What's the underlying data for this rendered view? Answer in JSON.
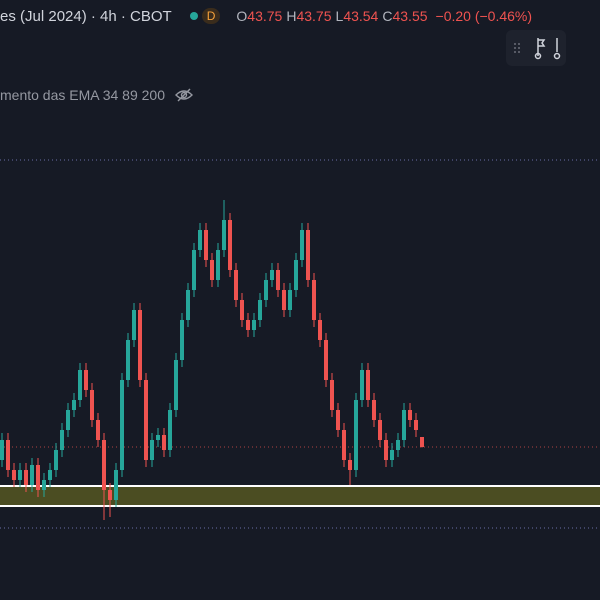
{
  "header": {
    "symbol": "es (Jul 2024) · 4h · CBOT",
    "badge": "D",
    "ohlc": [
      {
        "label": "O",
        "value": "43.75"
      },
      {
        "label": "H",
        "value": "43.75"
      },
      {
        "label": "L",
        "value": "43.54"
      },
      {
        "label": "C",
        "value": "43.55"
      }
    ],
    "change": "−0.20 (−0.46%)"
  },
  "indicator": {
    "label": "mento das EMA 34 89 200"
  },
  "chart_data": {
    "type": "candlestick",
    "up_color": "#26a69a",
    "down_color": "#ef5350",
    "ylim": [
      40.49,
      52.49
    ],
    "open": [
      43.29,
      43.69,
      43.09,
      42.89,
      43.09,
      42.79,
      43.19,
      42.69,
      42.89,
      43.09,
      43.49,
      43.89,
      44.29,
      44.49,
      45.09,
      44.69,
      44.09,
      43.69,
      42.69,
      42.49,
      43.09,
      44.89,
      45.69,
      46.29,
      44.89,
      43.29,
      43.69,
      43.79,
      43.49,
      44.29,
      45.29,
      46.09,
      46.69,
      47.49,
      47.89,
      47.29,
      46.89,
      47.49,
      48.09,
      47.09,
      46.49,
      46.09,
      45.89,
      46.09,
      46.49,
      46.89,
      47.09,
      46.69,
      46.29,
      46.69,
      47.29,
      47.89,
      46.89,
      46.09,
      45.69,
      44.89,
      44.29,
      43.89,
      43.29,
      43.09,
      44.49,
      45.09,
      44.49,
      44.09,
      43.69,
      43.29,
      43.49,
      43.69,
      44.29,
      44.09,
      43.75
    ],
    "high": [
      43.83,
      43.83,
      43.23,
      43.23,
      43.23,
      43.33,
      43.33,
      43.03,
      43.23,
      43.63,
      44.03,
      44.43,
      44.63,
      45.23,
      45.23,
      44.83,
      44.23,
      43.83,
      42.83,
      43.23,
      45.03,
      45.83,
      46.43,
      46.43,
      45.03,
      43.83,
      43.93,
      43.93,
      44.43,
      45.43,
      46.23,
      46.83,
      47.63,
      48.03,
      48.03,
      47.43,
      47.63,
      48.49,
      48.23,
      47.23,
      46.63,
      46.23,
      46.23,
      46.63,
      47.03,
      47.23,
      47.23,
      46.83,
      46.83,
      47.43,
      48.03,
      48.03,
      47.03,
      46.23,
      45.83,
      45.03,
      44.43,
      44.03,
      43.43,
      44.63,
      45.23,
      45.23,
      44.63,
      44.23,
      43.83,
      43.63,
      43.83,
      44.43,
      44.43,
      44.23,
      43.75
    ],
    "low": [
      43.15,
      42.95,
      42.75,
      42.75,
      42.65,
      42.65,
      42.55,
      42.55,
      42.75,
      42.95,
      43.35,
      43.75,
      44.15,
      44.35,
      44.55,
      43.95,
      43.55,
      42.09,
      42.15,
      42.35,
      42.95,
      44.75,
      45.55,
      44.75,
      43.15,
      43.15,
      43.55,
      43.35,
      43.35,
      44.15,
      45.15,
      45.95,
      46.55,
      47.35,
      47.15,
      46.75,
      46.75,
      47.35,
      46.95,
      46.35,
      45.95,
      45.75,
      45.75,
      45.95,
      46.35,
      46.75,
      46.55,
      46.15,
      46.15,
      46.55,
      47.15,
      46.75,
      45.95,
      45.55,
      44.75,
      44.15,
      43.75,
      43.15,
      42.79,
      42.95,
      44.35,
      44.35,
      43.95,
      43.55,
      43.15,
      43.15,
      43.35,
      43.55,
      43.95,
      43.75,
      43.54
    ],
    "close": [
      43.69,
      43.09,
      42.89,
      43.09,
      42.79,
      43.19,
      42.69,
      42.89,
      43.09,
      43.49,
      43.89,
      44.29,
      44.49,
      45.09,
      44.69,
      44.09,
      43.69,
      42.69,
      42.49,
      43.09,
      44.89,
      45.69,
      46.29,
      44.89,
      43.29,
      43.69,
      43.79,
      43.49,
      44.29,
      45.29,
      46.09,
      46.69,
      47.49,
      47.89,
      47.29,
      46.89,
      47.49,
      48.09,
      47.09,
      46.49,
      46.09,
      45.89,
      46.09,
      46.49,
      46.89,
      47.09,
      46.69,
      46.29,
      46.69,
      47.29,
      47.89,
      46.89,
      46.09,
      45.69,
      44.89,
      44.29,
      43.89,
      43.29,
      43.09,
      44.49,
      45.09,
      44.49,
      44.09,
      43.69,
      43.29,
      43.49,
      43.69,
      44.29,
      44.09,
      43.89,
      43.55
    ],
    "levels": [
      49.29,
      41.93
    ],
    "level_color": "#6a6ea8",
    "zone": [
      42.37,
      42.77
    ],
    "zone_color": "#4b4d22"
  }
}
